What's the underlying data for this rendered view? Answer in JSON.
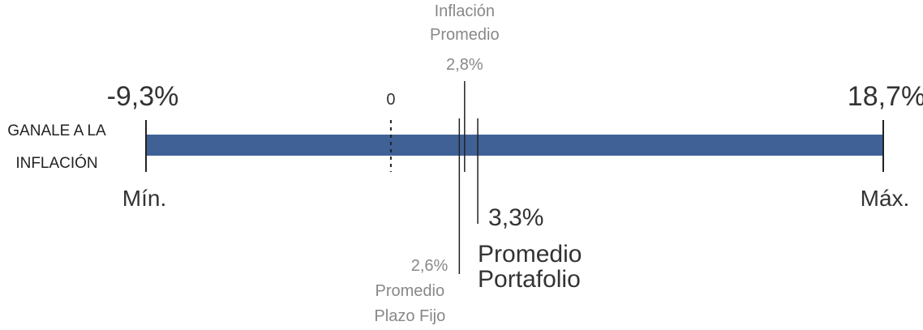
{
  "chart_data": {
    "type": "range",
    "category": "GANALE A LA INFLACIÓN",
    "color": "#3f6196",
    "xlim": [
      -9.3,
      18.7
    ],
    "xticks": [
      0
    ],
    "min": {
      "value": -9.3,
      "value_label": "-9,3%",
      "label": "Mín."
    },
    "max": {
      "value": 18.7,
      "value_label": "18,7%",
      "label": "Máx."
    },
    "markers": [
      {
        "name": "Inflación Promedio",
        "value": 2.8,
        "value_label": "2,8%"
      },
      {
        "name": "Promedio Plazo Fijo",
        "value": 2.6,
        "value_label": "2,6%"
      },
      {
        "name": "Promedio Portafolio",
        "value": 3.3,
        "value_label": "3,3%"
      }
    ]
  }
}
